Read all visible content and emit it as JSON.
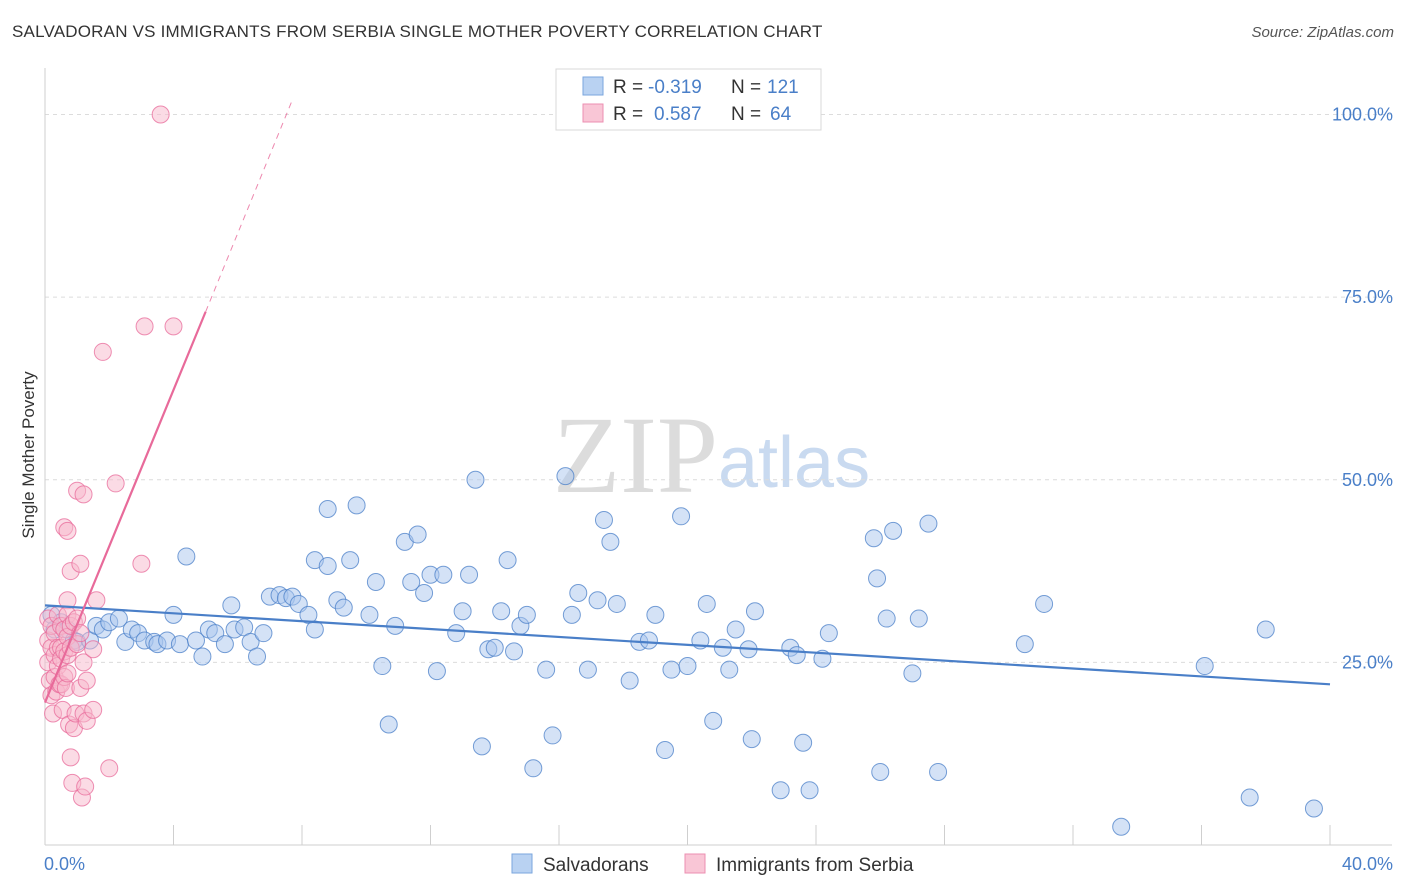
{
  "title": "SALVADORAN VS IMMIGRANTS FROM SERBIA SINGLE MOTHER POVERTY CORRELATION CHART",
  "source": "Source: ZipAtlas.com",
  "watermark": {
    "zip": "ZIP",
    "atlas": "atlas"
  },
  "legend_top": [
    {
      "r_label": "R =",
      "r_value": "-0.319",
      "n_label": "N =",
      "n_value": "121",
      "color": "#4a7fc8"
    },
    {
      "r_label": "R =",
      "r_value": "0.587",
      "n_label": "N =",
      "n_value": "64",
      "color": "#4a7fc8"
    }
  ],
  "legend_bottom": [
    {
      "name": "Salvadorans"
    },
    {
      "name": "Immigrants from Serbia"
    }
  ],
  "chart_data": {
    "type": "scatter",
    "title": "SALVADORAN VS IMMIGRANTS FROM SERBIA SINGLE MOTHER POVERTY CORRELATION CHART",
    "xlabel": "",
    "ylabel": "Single Mother Poverty",
    "xlim": [
      0,
      40
    ],
    "ylim": [
      0,
      105
    ],
    "x_ticks": [
      0,
      40
    ],
    "x_tick_labels": [
      "0.0%",
      "40.0%"
    ],
    "y_ticks": [
      25,
      50,
      75,
      100
    ],
    "y_tick_labels": [
      "25.0%",
      "50.0%",
      "75.0%",
      "100.0%"
    ],
    "grid": true,
    "legend_position": "top-center",
    "series": [
      {
        "name": "Salvadorans",
        "color": "#4a7fc8",
        "fill": "#a9c6ee",
        "trend": {
          "x": [
            0,
            40
          ],
          "y": [
            32.8,
            22.0
          ],
          "dashed_extension": false
        },
        "points": [
          [
            0.2,
            31.5
          ],
          [
            0.3,
            29.5
          ],
          [
            0.5,
            30.5
          ],
          [
            0.7,
            29.5
          ],
          [
            0.9,
            28
          ],
          [
            1.0,
            27.8
          ],
          [
            1.4,
            28
          ],
          [
            1.6,
            30
          ],
          [
            1.8,
            29.5
          ],
          [
            2.0,
            30.5
          ],
          [
            2.3,
            31
          ],
          [
            2.5,
            27.8
          ],
          [
            2.7,
            29.5
          ],
          [
            2.9,
            29
          ],
          [
            3.1,
            28
          ],
          [
            3.4,
            27.8
          ],
          [
            3.5,
            27.5
          ],
          [
            3.8,
            28
          ],
          [
            4.0,
            31.5
          ],
          [
            4.2,
            27.5
          ],
          [
            4.4,
            39.5
          ],
          [
            4.7,
            28
          ],
          [
            4.9,
            25.8
          ],
          [
            5.1,
            29.5
          ],
          [
            5.3,
            29
          ],
          [
            5.6,
            27.5
          ],
          [
            5.8,
            32.8
          ],
          [
            5.9,
            29.5
          ],
          [
            6.2,
            29.8
          ],
          [
            6.4,
            27.8
          ],
          [
            6.6,
            25.8
          ],
          [
            6.8,
            29
          ],
          [
            7.0,
            34
          ],
          [
            7.3,
            34.2
          ],
          [
            7.5,
            33.8
          ],
          [
            7.7,
            34
          ],
          [
            7.9,
            33
          ],
          [
            8.2,
            31.5
          ],
          [
            8.4,
            29.5
          ],
          [
            8.8,
            46
          ],
          [
            8.4,
            39
          ],
          [
            8.8,
            38.2
          ],
          [
            9.1,
            33.5
          ],
          [
            9.3,
            32.5
          ],
          [
            9.5,
            39
          ],
          [
            9.7,
            46.5
          ],
          [
            10.1,
            31.5
          ],
          [
            10.3,
            36
          ],
          [
            10.5,
            24.5
          ],
          [
            10.7,
            16.5
          ],
          [
            10.9,
            30
          ],
          [
            11.2,
            41.5
          ],
          [
            11.4,
            36
          ],
          [
            11.6,
            42.5
          ],
          [
            11.8,
            34.5
          ],
          [
            12.0,
            37
          ],
          [
            12.2,
            23.8
          ],
          [
            12.4,
            37
          ],
          [
            12.8,
            29
          ],
          [
            13.0,
            32
          ],
          [
            13.2,
            37
          ],
          [
            13.4,
            50
          ],
          [
            13.6,
            13.5
          ],
          [
            13.8,
            26.8
          ],
          [
            14.0,
            27
          ],
          [
            14.2,
            32
          ],
          [
            14.4,
            39
          ],
          [
            14.6,
            26.5
          ],
          [
            14.8,
            30
          ],
          [
            15.0,
            31.5
          ],
          [
            15.2,
            10.5
          ],
          [
            15.6,
            24
          ],
          [
            15.8,
            15
          ],
          [
            16.2,
            50.5
          ],
          [
            16.4,
            31.5
          ],
          [
            16.6,
            34.5
          ],
          [
            16.9,
            24
          ],
          [
            17.2,
            33.5
          ],
          [
            17.4,
            44.5
          ],
          [
            17.6,
            41.5
          ],
          [
            17.8,
            33
          ],
          [
            18.2,
            22.5
          ],
          [
            18.5,
            27.8
          ],
          [
            18.8,
            28
          ],
          [
            19.0,
            31.5
          ],
          [
            19.3,
            13
          ],
          [
            19.5,
            24
          ],
          [
            19.8,
            45
          ],
          [
            20.0,
            24.5
          ],
          [
            20.4,
            28
          ],
          [
            20.6,
            33
          ],
          [
            20.8,
            17
          ],
          [
            21.1,
            27
          ],
          [
            21.3,
            24
          ],
          [
            21.5,
            29.5
          ],
          [
            21.9,
            26.8
          ],
          [
            22.0,
            14.5
          ],
          [
            22.1,
            32
          ],
          [
            22.9,
            7.5
          ],
          [
            23.2,
            27
          ],
          [
            23.4,
            26
          ],
          [
            23.6,
            14
          ],
          [
            23.8,
            7.5
          ],
          [
            24.2,
            25.5
          ],
          [
            24.4,
            29
          ],
          [
            25.8,
            42
          ],
          [
            25.9,
            36.5
          ],
          [
            26.0,
            10
          ],
          [
            26.2,
            31
          ],
          [
            26.4,
            43
          ],
          [
            27.0,
            23.5
          ],
          [
            27.2,
            31
          ],
          [
            27.5,
            44
          ],
          [
            27.8,
            10
          ],
          [
            30.5,
            27.5
          ],
          [
            31.1,
            33
          ],
          [
            33.5,
            2.5
          ],
          [
            36.1,
            24.5
          ],
          [
            37.5,
            6.5
          ],
          [
            38.0,
            29.5
          ],
          [
            39.5,
            5
          ]
        ]
      },
      {
        "name": "Immigrants from Serbia",
        "color": "#e86a9a",
        "fill": "#f7b8cc",
        "trend": {
          "x": [
            0,
            5
          ],
          "y": [
            19.5,
            73.0
          ],
          "dashed_extension": true,
          "dashed_to": [
            7.7,
            102
          ]
        },
        "points": [
          [
            0.1,
            31
          ],
          [
            0.1,
            28
          ],
          [
            0.1,
            25
          ],
          [
            0.15,
            22.5
          ],
          [
            0.2,
            30
          ],
          [
            0.2,
            27
          ],
          [
            0.2,
            20.5
          ],
          [
            0.25,
            18
          ],
          [
            0.3,
            29
          ],
          [
            0.3,
            26
          ],
          [
            0.3,
            23
          ],
          [
            0.35,
            21
          ],
          [
            0.4,
            31.5
          ],
          [
            0.4,
            27
          ],
          [
            0.4,
            24.5
          ],
          [
            0.45,
            22
          ],
          [
            0.5,
            30
          ],
          [
            0.5,
            27
          ],
          [
            0.5,
            25.5
          ],
          [
            0.5,
            22
          ],
          [
            0.55,
            18.5
          ],
          [
            0.6,
            43.5
          ],
          [
            0.6,
            29.5
          ],
          [
            0.6,
            26.5
          ],
          [
            0.6,
            23
          ],
          [
            0.65,
            21.5
          ],
          [
            0.7,
            43
          ],
          [
            0.7,
            33.5
          ],
          [
            0.7,
            31.5
          ],
          [
            0.7,
            28.5
          ],
          [
            0.7,
            26
          ],
          [
            0.7,
            23.5
          ],
          [
            0.75,
            16.5
          ],
          [
            0.8,
            37.5
          ],
          [
            0.8,
            30
          ],
          [
            0.8,
            27
          ],
          [
            0.8,
            12
          ],
          [
            0.85,
            8.5
          ],
          [
            0.9,
            30.5
          ],
          [
            0.9,
            16
          ],
          [
            0.95,
            18
          ],
          [
            1.0,
            48.5
          ],
          [
            1.0,
            31
          ],
          [
            1.0,
            27.5
          ],
          [
            1.1,
            38.5
          ],
          [
            1.1,
            29
          ],
          [
            1.1,
            21.5
          ],
          [
            1.15,
            6.5
          ],
          [
            1.2,
            48
          ],
          [
            1.2,
            25
          ],
          [
            1.2,
            18
          ],
          [
            1.25,
            8
          ],
          [
            1.3,
            17
          ],
          [
            1.3,
            22.5
          ],
          [
            1.5,
            18.5
          ],
          [
            1.5,
            26.8
          ],
          [
            1.6,
            33.5
          ],
          [
            1.8,
            67.5
          ],
          [
            2.0,
            10.5
          ],
          [
            2.2,
            49.5
          ],
          [
            3.0,
            38.5
          ],
          [
            3.1,
            71
          ],
          [
            4.0,
            71
          ],
          [
            3.6,
            100
          ]
        ]
      }
    ]
  }
}
